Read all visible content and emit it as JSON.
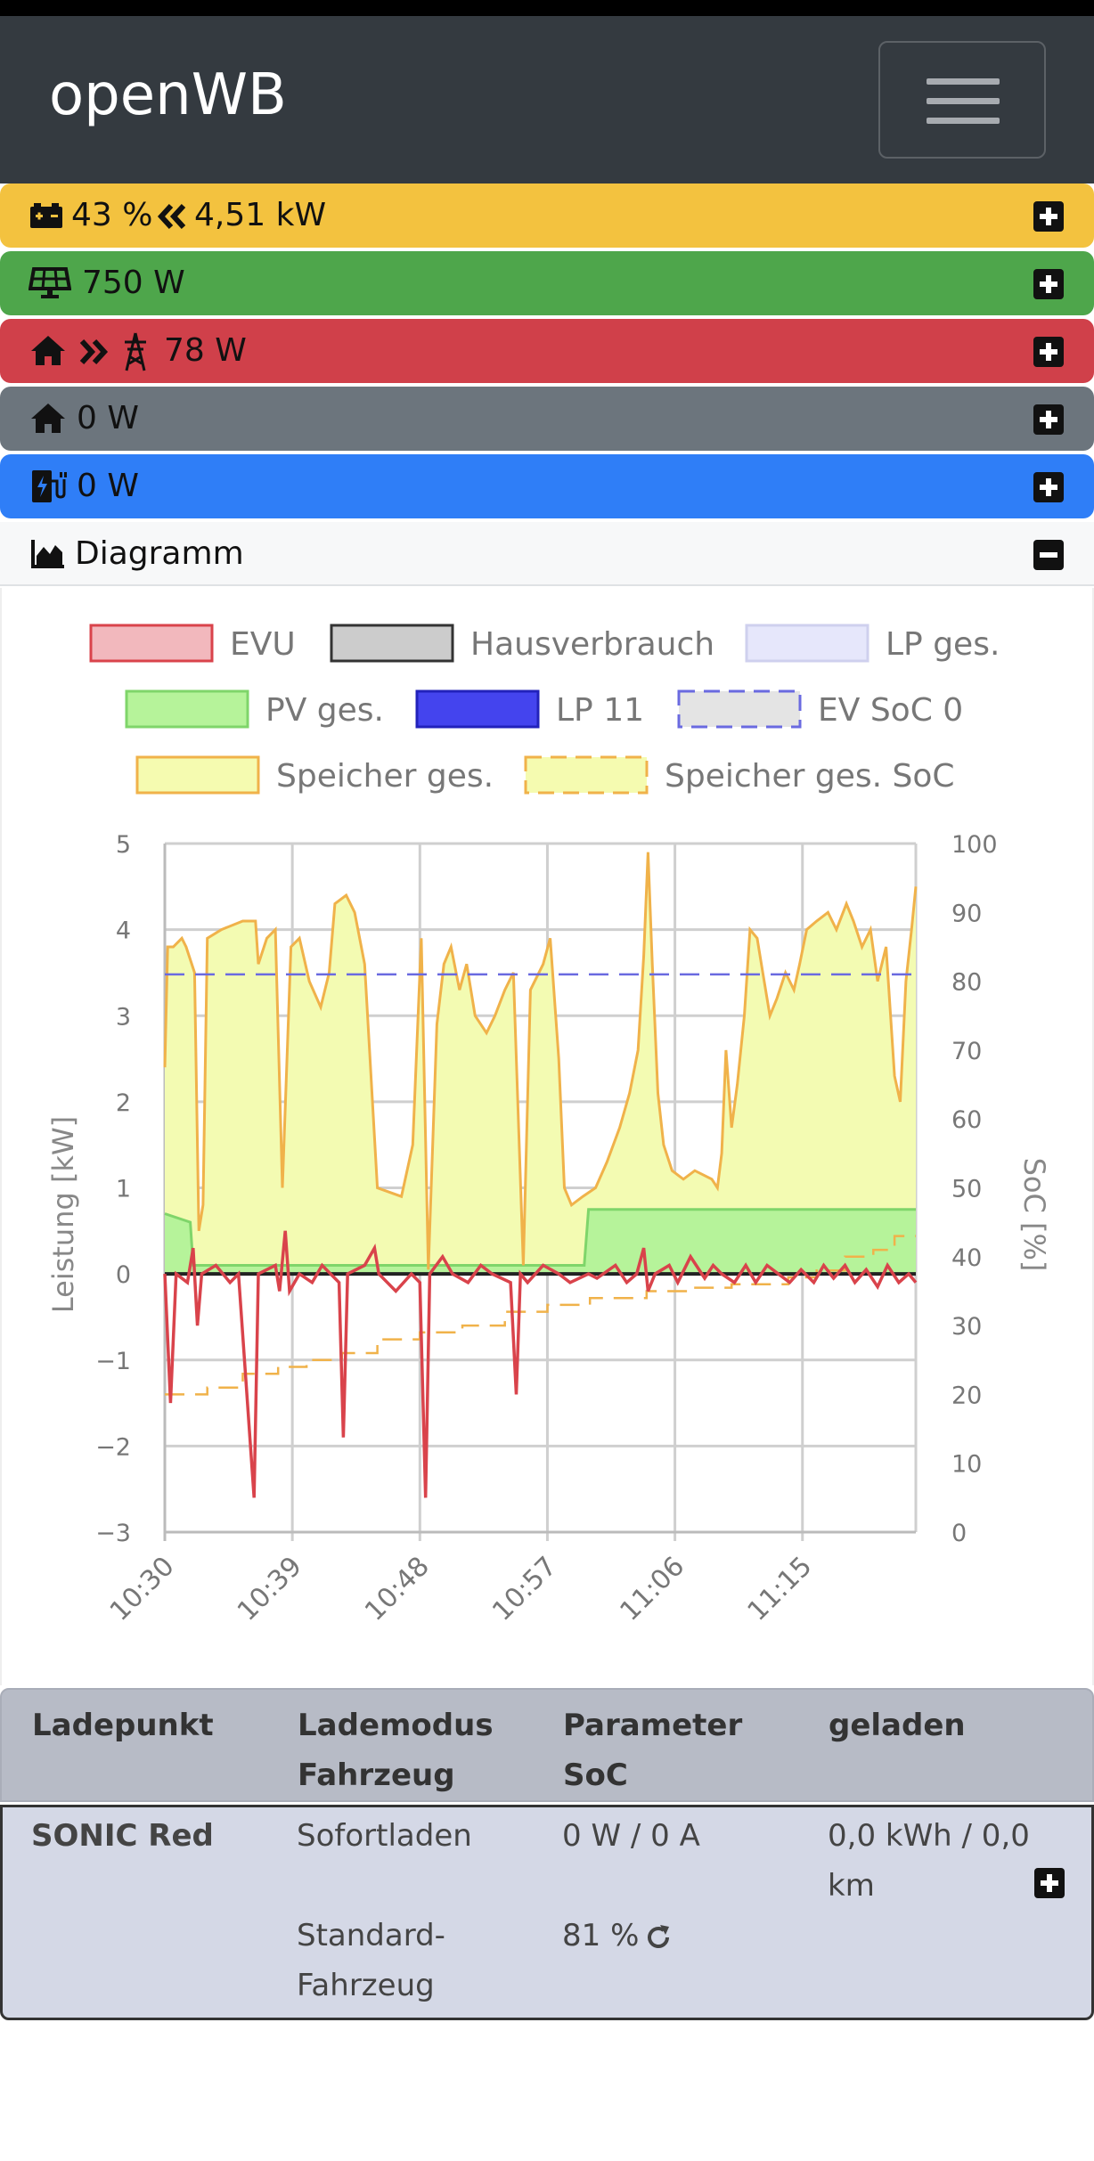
{
  "app": {
    "brand": "openWB"
  },
  "cards": {
    "battery": {
      "percent": "43 %",
      "power": "4,51 kW",
      "color": "#f3c23f"
    },
    "pv": {
      "power": "750 W",
      "color": "#4ea64b"
    },
    "grid": {
      "power": "78 W",
      "color": "#d0404a"
    },
    "house": {
      "power": "0 W",
      "color": "#6c757d"
    },
    "charge": {
      "power": "0 W",
      "color": "#2f7ef7"
    }
  },
  "diagram": {
    "label": "Diagramm"
  },
  "chart_data": {
    "type": "line",
    "legend": [
      {
        "name": "EVU",
        "fill": "#f2b8bd",
        "stroke": "#d9434b",
        "dashed": false
      },
      {
        "name": "Hausverbrauch",
        "fill": "#cccccc",
        "stroke": "#333333",
        "dashed": false
      },
      {
        "name": "LP ges.",
        "fill": "#e6e7fb",
        "stroke": "#cfd0ee",
        "dashed": false
      },
      {
        "name": "PV ges.",
        "fill": "#b6f39a",
        "stroke": "#7fd56a",
        "dashed": false
      },
      {
        "name": "LP 11",
        "fill": "#4444ee",
        "stroke": "#2222bb",
        "dashed": false
      },
      {
        "name": "EV SoC 0",
        "fill": "#e4e4e4",
        "stroke": "#6a6ae0",
        "dashed": true
      },
      {
        "name": "Speicher ges.",
        "fill": "#f5fbb0",
        "stroke": "#f0b24a",
        "dashed": false
      },
      {
        "name": "Speicher ges. SoC",
        "fill": "#f5fbb0",
        "stroke": "#f0b24a",
        "dashed": true
      }
    ],
    "ylabel": "Leistung [kW]",
    "y2label": "SoC [%]",
    "ylim": [
      -3,
      5
    ],
    "y2lim": [
      0,
      100
    ],
    "yticks": [
      "5",
      "4",
      "3",
      "2",
      "1",
      "0",
      "−1",
      "−2",
      "−3"
    ],
    "y2ticks": [
      "100",
      "90",
      "80",
      "70",
      "60",
      "50",
      "40",
      "30",
      "20",
      "10",
      "0"
    ],
    "xticks": [
      "10:30",
      "10:39",
      "10:48",
      "10:57",
      "11:06",
      "11:15"
    ],
    "x_range_min": [
      0,
      53
    ],
    "series": [
      {
        "name": "Speicher ges.",
        "axis": "kW",
        "points": [
          [
            0,
            2.4
          ],
          [
            0.2,
            3.8
          ],
          [
            0.6,
            3.8
          ],
          [
            1.2,
            3.9
          ],
          [
            1.5,
            3.8
          ],
          [
            2.1,
            3.5
          ],
          [
            2.4,
            0.5
          ],
          [
            2.7,
            0.8
          ],
          [
            3,
            3.9
          ],
          [
            4,
            4.0
          ],
          [
            5.5,
            4.1
          ],
          [
            6.4,
            4.1
          ],
          [
            6.6,
            3.6
          ],
          [
            7.2,
            3.9
          ],
          [
            7.8,
            4.0
          ],
          [
            8.3,
            1.0
          ],
          [
            8.9,
            3.8
          ],
          [
            9.5,
            3.9
          ],
          [
            10.2,
            3.4
          ],
          [
            11.0,
            3.1
          ],
          [
            11.6,
            3.5
          ],
          [
            12.0,
            4.3
          ],
          [
            12.8,
            4.4
          ],
          [
            13.4,
            4.2
          ],
          [
            14.1,
            3.6
          ],
          [
            15.0,
            1.0
          ],
          [
            16.7,
            0.9
          ],
          [
            17.5,
            1.5
          ],
          [
            18.1,
            3.9
          ],
          [
            18.6,
            0.05
          ],
          [
            19.2,
            2.9
          ],
          [
            19.7,
            3.6
          ],
          [
            20.2,
            3.8
          ],
          [
            20.8,
            3.3
          ],
          [
            21.3,
            3.6
          ],
          [
            21.9,
            3.0
          ],
          [
            22.7,
            2.8
          ],
          [
            23.3,
            3.0
          ],
          [
            24.0,
            3.3
          ],
          [
            24.6,
            3.5
          ],
          [
            25.3,
            0.1
          ],
          [
            25.8,
            3.3
          ],
          [
            26.7,
            3.6
          ],
          [
            27.2,
            3.9
          ],
          [
            27.8,
            2.5
          ],
          [
            28.2,
            1.0
          ],
          [
            28.7,
            0.8
          ],
          [
            29.5,
            0.9
          ],
          [
            30.4,
            1.0
          ],
          [
            31.2,
            1.3
          ],
          [
            32.1,
            1.7
          ],
          [
            32.8,
            2.1
          ],
          [
            33.4,
            2.6
          ],
          [
            33.8,
            3.7
          ],
          [
            34.1,
            4.9
          ],
          [
            34.4,
            3.6
          ],
          [
            34.8,
            2.1
          ],
          [
            35.2,
            1.5
          ],
          [
            35.8,
            1.2
          ],
          [
            36.6,
            1.1
          ],
          [
            37.4,
            1.2
          ],
          [
            38.6,
            1.1
          ],
          [
            39.0,
            1.0
          ],
          [
            39.3,
            1.4
          ],
          [
            39.6,
            2.6
          ],
          [
            40.0,
            1.7
          ],
          [
            40.4,
            2.2
          ],
          [
            40.9,
            3.0
          ],
          [
            41.3,
            4.0
          ],
          [
            41.8,
            3.9
          ],
          [
            42.2,
            3.5
          ],
          [
            42.7,
            3.0
          ],
          [
            43.2,
            3.2
          ],
          [
            43.8,
            3.5
          ],
          [
            44.4,
            3.3
          ],
          [
            44.8,
            3.6
          ],
          [
            45.3,
            4.0
          ],
          [
            46.0,
            4.1
          ],
          [
            46.8,
            4.2
          ],
          [
            47.4,
            4.0
          ],
          [
            48.1,
            4.3
          ],
          [
            48.6,
            4.1
          ],
          [
            49.2,
            3.8
          ],
          [
            49.8,
            4.0
          ],
          [
            50.3,
            3.4
          ],
          [
            50.9,
            3.8
          ],
          [
            51.5,
            2.3
          ],
          [
            51.9,
            2.0
          ],
          [
            52.3,
            3.4
          ],
          [
            52.7,
            4.0
          ],
          [
            53,
            4.5
          ]
        ]
      },
      {
        "name": "PV ges.",
        "axis": "kW",
        "points": [
          [
            0,
            0.7
          ],
          [
            1.8,
            0.6
          ],
          [
            2.0,
            0.1
          ],
          [
            29.6,
            0.1
          ],
          [
            29.9,
            0.75
          ],
          [
            53,
            0.75
          ]
        ]
      },
      {
        "name": "EVU",
        "axis": "kW",
        "points": [
          [
            0,
            0
          ],
          [
            0.4,
            -1.5
          ],
          [
            0.8,
            0
          ],
          [
            1.6,
            -0.1
          ],
          [
            2.0,
            0.3
          ],
          [
            2.3,
            -0.6
          ],
          [
            2.6,
            0
          ],
          [
            3.6,
            0.1
          ],
          [
            4.6,
            -0.1
          ],
          [
            5.2,
            0
          ],
          [
            6.3,
            -2.6
          ],
          [
            6.6,
            0
          ],
          [
            7.8,
            0.1
          ],
          [
            8.1,
            -0.2
          ],
          [
            8.5,
            0.5
          ],
          [
            8.8,
            -0.2
          ],
          [
            9.5,
            0
          ],
          [
            10.4,
            -0.1
          ],
          [
            11.1,
            0.1
          ],
          [
            12.3,
            -0.1
          ],
          [
            12.6,
            -1.9
          ],
          [
            12.9,
            0
          ],
          [
            14.1,
            0.1
          ],
          [
            14.8,
            0.3
          ],
          [
            15.1,
            0
          ],
          [
            16.3,
            -0.2
          ],
          [
            17.4,
            0
          ],
          [
            18.0,
            -0.1
          ],
          [
            18.4,
            -2.6
          ],
          [
            18.7,
            0
          ],
          [
            19.6,
            0.2
          ],
          [
            20.3,
            0
          ],
          [
            21.4,
            -0.1
          ],
          [
            22.3,
            0.1
          ],
          [
            23.1,
            0
          ],
          [
            24.4,
            -0.1
          ],
          [
            24.8,
            -1.4
          ],
          [
            25.1,
            0
          ],
          [
            25.6,
            -0.1
          ],
          [
            26.7,
            0.1
          ],
          [
            27.8,
            0
          ],
          [
            28.6,
            -0.1
          ],
          [
            29.9,
            0
          ],
          [
            30.5,
            -0.05
          ],
          [
            31.8,
            0.1
          ],
          [
            32.6,
            -0.1
          ],
          [
            33.3,
            0
          ],
          [
            33.8,
            0.3
          ],
          [
            34.1,
            -0.2
          ],
          [
            34.6,
            0
          ],
          [
            35.6,
            0.1
          ],
          [
            36.2,
            -0.1
          ],
          [
            37.1,
            0.2
          ],
          [
            38.1,
            -0.05
          ],
          [
            38.7,
            0.1
          ],
          [
            39.3,
            0
          ],
          [
            40.2,
            -0.1
          ],
          [
            41.0,
            0.1
          ],
          [
            41.7,
            -0.1
          ],
          [
            42.5,
            0.1
          ],
          [
            43.3,
            0
          ],
          [
            44.1,
            -0.1
          ],
          [
            44.9,
            0.05
          ],
          [
            45.8,
            -0.1
          ],
          [
            46.5,
            0.1
          ],
          [
            47.2,
            -0.05
          ],
          [
            48.0,
            0.1
          ],
          [
            48.7,
            -0.1
          ],
          [
            49.5,
            0.05
          ],
          [
            50.3,
            -0.15
          ],
          [
            51.0,
            0.1
          ],
          [
            51.8,
            -0.1
          ],
          [
            52.5,
            0
          ],
          [
            53,
            -0.1
          ]
        ]
      },
      {
        "name": "Hausverbrauch",
        "axis": "kW",
        "points": [
          [
            0,
            0
          ],
          [
            53,
            0
          ]
        ]
      },
      {
        "name": "EV SoC 0",
        "axis": "%",
        "points": [
          [
            0,
            81
          ],
          [
            53,
            81
          ]
        ]
      },
      {
        "name": "Speicher ges. SoC",
        "axis": "%",
        "points": [
          [
            0,
            20
          ],
          [
            3,
            20
          ],
          [
            3,
            21
          ],
          [
            5.5,
            21
          ],
          [
            5.5,
            23
          ],
          [
            8,
            23
          ],
          [
            8,
            24
          ],
          [
            10,
            24
          ],
          [
            10,
            25
          ],
          [
            12.5,
            25
          ],
          [
            12.5,
            26
          ],
          [
            15,
            26
          ],
          [
            15,
            28
          ],
          [
            18,
            28
          ],
          [
            18,
            29
          ],
          [
            21,
            29
          ],
          [
            21,
            30
          ],
          [
            24,
            30
          ],
          [
            24,
            32
          ],
          [
            27,
            32
          ],
          [
            27,
            33
          ],
          [
            30,
            33
          ],
          [
            30,
            34
          ],
          [
            34,
            34
          ],
          [
            34,
            35
          ],
          [
            37,
            35
          ],
          [
            37,
            35.5
          ],
          [
            40,
            35.5
          ],
          [
            40,
            36
          ],
          [
            44,
            36
          ],
          [
            44,
            37
          ],
          [
            46,
            37
          ],
          [
            46,
            38
          ],
          [
            48,
            38
          ],
          [
            48,
            40
          ],
          [
            50,
            40
          ],
          [
            50,
            41
          ],
          [
            51.5,
            41
          ],
          [
            51.5,
            43
          ],
          [
            53,
            43
          ]
        ]
      }
    ]
  },
  "table": {
    "headers": {
      "ladepunkt": "Ladepunkt",
      "lademodus1": "Lademodus",
      "lademodus2": "Fahrzeug",
      "parameter1": "Parameter",
      "parameter2": "SoC",
      "geladen": "geladen"
    },
    "row": {
      "name": "SONIC Red",
      "mode": "Sofortladen",
      "power": "0 W / 0 A",
      "charged1": "0,0 kWh / 0,0",
      "charged2": "km",
      "vehicle1": "Standard-",
      "vehicle2": "Fahrzeug",
      "soc": "81 %"
    }
  }
}
